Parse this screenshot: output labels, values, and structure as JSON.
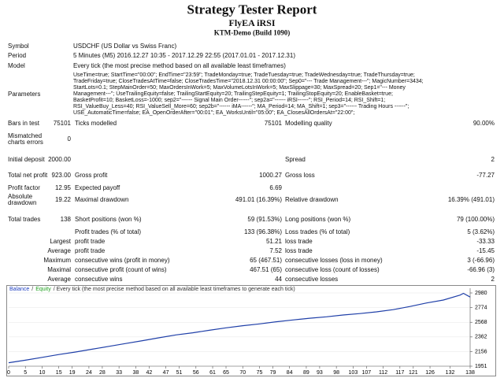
{
  "header": {
    "title": "Strategy Tester Report",
    "expert": "FlyEA iRSI",
    "server": "KTM-Demo (Build 1090)"
  },
  "info": [
    {
      "label": "Symbol",
      "text": "USDCHF (US Dollar vs Swiss Franc)"
    },
    {
      "label": "Period",
      "text": "5 Minutes (M5) 2016.12.27 10:35 - 2017.12.29 22:55 (2017.01.01 - 2017.12.31)"
    },
    {
      "label": "Model",
      "text": "Every tick (the most precise method based on all available least timeframes)"
    },
    {
      "label": "Parameters",
      "lines": [
        "UseTime=true; StartTime=\"00:00\"; EndTime=\"23:59\"; TradeMonday=true; TradeTuesday=true; TradeWednesday=true; TradeThursday=true;",
        "TradeFriday=true; CloseTradesAtTime=false; CloseTradesTime=\"2018.12.31 00:00:00\"; Sep0=\"--- Trade Management---\"; MagicNumber=3434;",
        "StartLots=0.1; StepMainOrder=50; MaxOrdersInWork=5; MaxVolumeLotsInWork=5; MaxSlippage=30; MaxSpread=20; Sep1=\"--- Money",
        "Management---\"; UseTrailingEquity=false; TrailingStartEquity=20; TrailingStepEquity=1; TrailingStopEquity=20; EnableBasket=true;",
        "BasketProfit=10; BasketLoss=-1000; sep2=\"------ Signal Main Order------\"; sep2a=\"------ iRSI------\"; RSI_Period=14; RSI_Shift=1;",
        "RSI_ValueBuy_Less=40; RSI_ValueSell_More=60; sep2b=\"------ iMA------\"; MA_Period=14; MA_Shift=1; sep3=\"------ Trading Hours ------\";",
        "USE_AutomaticTime=false; EA_OpenOrderAfter=\"00:01\"; EA_WorksUntil=\"05:00\"; EA_ClosesAllOrdersAt=\"22:00\";"
      ]
    }
  ],
  "stats": [
    {
      "label": "Bars in test",
      "value": "75101",
      "label2": "Ticks modelled",
      "value2": "75101",
      "label3": "Modelling quality",
      "value3": "90.00%"
    },
    {
      "label": "Mismatched charts errors",
      "value": "0"
    },
    {
      "label": "Initial deposit",
      "value": "2000.00",
      "label3": "Spread",
      "value3": "2"
    },
    {
      "label": "Total net profit",
      "value": "923.00",
      "label2": "Gross profit",
      "value2": "1000.27",
      "label3": "Gross loss",
      "value3": "-77.27"
    },
    {
      "label": "Profit factor",
      "value": "12.95",
      "label2": "Expected payoff",
      "value2": "6.69"
    },
    {
      "label": "Absolute drawdown",
      "value": "19.22",
      "label2": "Maximal drawdown",
      "value2": "491.01 (16.39%)",
      "label3": "Relative drawdown",
      "value3": "16.39% (491.01)"
    },
    {
      "label": "Total trades",
      "value": "138",
      "label2": "Short positions (won %)",
      "value2": "59 (91.53%)",
      "label3": "Long positions (won %)",
      "value3": "79 (100.00%)"
    }
  ],
  "trades": [
    {
      "label2": "Profit trades (% of total)",
      "value2": "133 (96.38%)",
      "label3": "Loss trades (% of total)",
      "value3": "5 (3.62%)"
    },
    {
      "label": "Largest",
      "label2": "profit trade",
      "value2": "51.21",
      "label3": "loss trade",
      "value3": "-33.33"
    },
    {
      "label": "Average",
      "label2": "profit trade",
      "value2": "7.52",
      "label3": "loss trade",
      "value3": "-15.45"
    },
    {
      "label": "Maximum",
      "label2": "consecutive wins (profit in money)",
      "value2": "65 (467.51)",
      "label3": "consecutive losses (loss in money)",
      "value3": "3 (-66.96)"
    },
    {
      "label": "Maximal",
      "label2": "consecutive profit (count of wins)",
      "value2": "467.51 (65)",
      "label3": "consecutive loss (count of losses)",
      "value3": "-66.96 (3)"
    },
    {
      "label": "Average",
      "label2": "consecutive wins",
      "value2": "44",
      "label3": "consecutive losses",
      "value3": "2"
    }
  ],
  "chart_data": {
    "type": "line",
    "legend": [
      {
        "text": "Balance",
        "color": "#2040c0"
      },
      {
        "text": "/",
        "color": "#333333"
      },
      {
        "text": "Equity",
        "color": "#20a020"
      },
      {
        "text": "/ Every tick (the most precise method based on all available least timeframes to generate each tick)",
        "color": "#333333"
      }
    ],
    "x": [
      0,
      5,
      10,
      15,
      20,
      25,
      30,
      35,
      40,
      45,
      50,
      55,
      60,
      65,
      70,
      75,
      80,
      85,
      90,
      95,
      100,
      105,
      110,
      115,
      120,
      125,
      130,
      135,
      136,
      138
    ],
    "series": [
      {
        "name": "Balance",
        "color": "#1f3fa8",
        "values": [
          2000,
          2035,
          2075,
          2115,
          2150,
          2190,
          2230,
          2270,
          2310,
          2350,
          2390,
          2420,
          2455,
          2490,
          2520,
          2545,
          2575,
          2600,
          2625,
          2645,
          2670,
          2690,
          2715,
          2745,
          2790,
          2840,
          2880,
          2950,
          2975,
          2923
        ]
      }
    ],
    "xlim": [
      0,
      138
    ],
    "xticks": [
      0,
      5,
      10,
      15,
      19,
      24,
      28,
      33,
      38,
      42,
      47,
      51,
      56,
      61,
      65,
      70,
      75,
      79,
      84,
      89,
      93,
      98,
      103,
      107,
      112,
      117,
      121,
      126,
      132,
      138
    ],
    "ylim": [
      1951,
      2980
    ],
    "yticks": [
      1951,
      2156,
      2362,
      2568,
      2774,
      2980
    ]
  }
}
